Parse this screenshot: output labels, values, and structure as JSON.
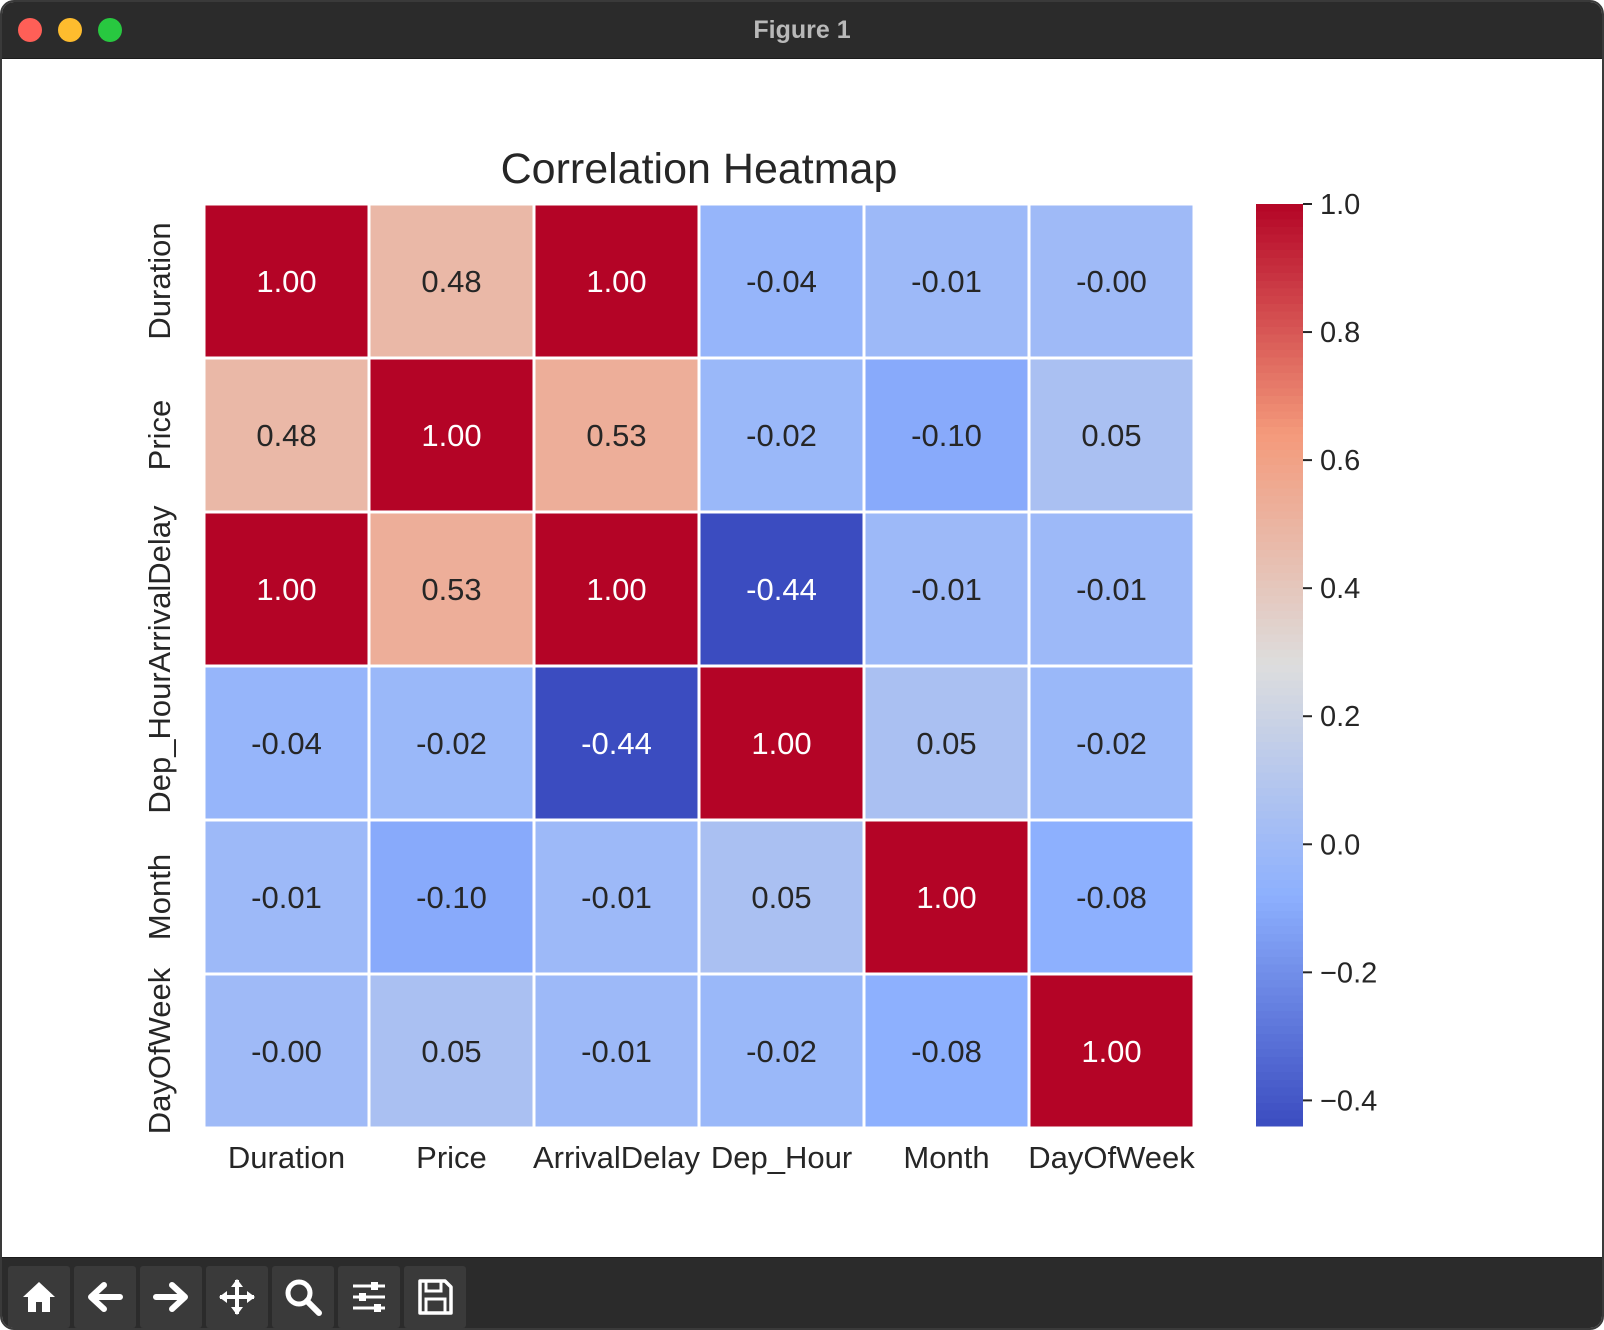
{
  "window": {
    "title": "Figure 1"
  },
  "toolbar": {
    "buttons": [
      {
        "icon": "home-icon"
      },
      {
        "icon": "back-arrow-icon"
      },
      {
        "icon": "forward-arrow-icon"
      },
      {
        "icon": "pan-move-icon"
      },
      {
        "icon": "zoom-magnifier-icon"
      },
      {
        "icon": "configure-subplots-icon"
      },
      {
        "icon": "save-floppy-icon"
      }
    ]
  },
  "chart_data": {
    "type": "heatmap",
    "title": "Correlation Heatmap",
    "xlabel": "",
    "ylabel": "",
    "x_categories": [
      "Duration",
      "Price",
      "ArrivalDelay",
      "Dep_Hour",
      "Month",
      "DayOfWeek"
    ],
    "y_categories": [
      "Duration",
      "Price",
      "ArrivalDelay",
      "Dep_Hour",
      "Month",
      "DayOfWeek"
    ],
    "values": [
      [
        1.0,
        0.48,
        1.0,
        -0.04,
        -0.01,
        -0.0
      ],
      [
        0.48,
        1.0,
        0.53,
        -0.02,
        -0.1,
        0.05
      ],
      [
        1.0,
        0.53,
        1.0,
        -0.44,
        -0.01,
        -0.01
      ],
      [
        -0.04,
        -0.02,
        -0.44,
        1.0,
        0.05,
        -0.02
      ],
      [
        -0.01,
        -0.1,
        -0.01,
        0.05,
        1.0,
        -0.08
      ],
      [
        -0.0,
        0.05,
        -0.01,
        -0.02,
        -0.08,
        1.0
      ]
    ],
    "annotations": [
      [
        "1.00",
        "0.48",
        "1.00",
        "-0.04",
        "-0.01",
        "-0.00"
      ],
      [
        "0.48",
        "1.00",
        "0.53",
        "-0.02",
        "-0.10",
        "0.05"
      ],
      [
        "1.00",
        "0.53",
        "1.00",
        "-0.44",
        "-0.01",
        "-0.01"
      ],
      [
        "-0.04",
        "-0.02",
        "-0.44",
        "1.00",
        "0.05",
        "-0.02"
      ],
      [
        "-0.01",
        "-0.10",
        "-0.01",
        "0.05",
        "1.00",
        "-0.08"
      ],
      [
        "-0.00",
        "0.05",
        "-0.01",
        "-0.02",
        "-0.08",
        "1.00"
      ]
    ],
    "colormap": "coolwarm",
    "vmin": -0.44,
    "vmax": 1.0,
    "colorbar": {
      "ticks": [
        1.0,
        0.8,
        0.6,
        0.4,
        0.2,
        0.0,
        -0.2,
        -0.4
      ],
      "tick_labels": [
        "1.0",
        "0.8",
        "0.6",
        "0.4",
        "0.2",
        "0.0",
        "−0.2",
        "−0.4"
      ]
    },
    "colors": {
      "cold": "#3b4cc0",
      "neutral": "#dddddd",
      "hot": "#b40426",
      "dark_text": "#262626",
      "light_text": "#ffffff",
      "cell_border": "#ffffff"
    },
    "grid": false,
    "legend": "colorbar-right"
  }
}
